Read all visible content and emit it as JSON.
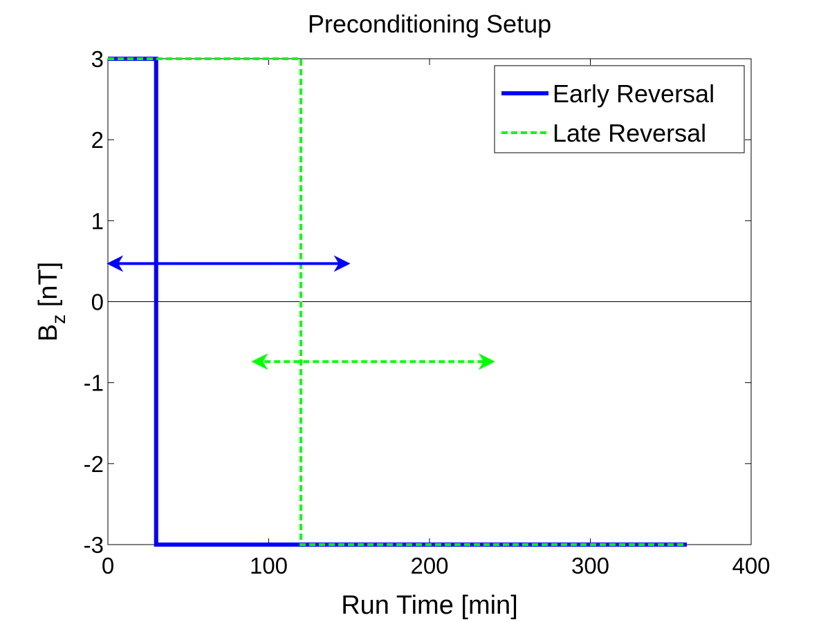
{
  "chart_data": {
    "type": "line",
    "title": "Preconditioning Setup",
    "xlabel": "Run Time [min]",
    "ylabel": {
      "base": "B",
      "subscript": "z",
      "unit": " [nT]"
    },
    "xlim": [
      0,
      400
    ],
    "ylim": [
      -3,
      3
    ],
    "xticks": [
      0,
      100,
      200,
      300,
      400
    ],
    "yticks": [
      -3,
      -2,
      -1,
      0,
      1,
      2,
      3
    ],
    "xtick_labels": [
      "0",
      "100",
      "200",
      "300",
      "400"
    ],
    "ytick_labels": [
      "-3",
      "-2",
      "-1",
      "0",
      "1",
      "2",
      "3"
    ],
    "grid": false,
    "legend_position": "top-right",
    "zero_line": {
      "y": 0
    },
    "series": [
      {
        "name": "Early Reversal",
        "color": "#0000ff",
        "style": "solid",
        "points": [
          [
            0,
            3
          ],
          [
            30,
            3
          ],
          [
            30,
            -3
          ],
          [
            360,
            -3
          ]
        ]
      },
      {
        "name": "Late Reversal",
        "color": "#00ff00",
        "style": "dashed",
        "points": [
          [
            0,
            3
          ],
          [
            120,
            3
          ],
          [
            120,
            -3
          ],
          [
            360,
            -3
          ]
        ]
      }
    ],
    "annotations": [
      {
        "type": "double-arrow",
        "color": "#0000ff",
        "style": "solid",
        "from": [
          0,
          0.47
        ],
        "to": [
          150,
          0.47
        ]
      },
      {
        "type": "double-arrow",
        "color": "#00ff00",
        "style": "dashed",
        "from": [
          90,
          -0.74
        ],
        "to": [
          240,
          -0.74
        ]
      }
    ]
  }
}
